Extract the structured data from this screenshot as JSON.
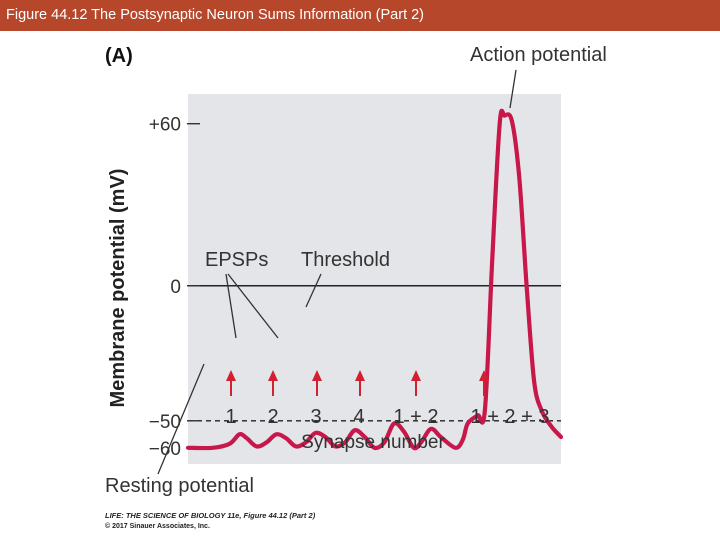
{
  "header": {
    "title": "Figure 44.12 The Postsynaptic Neuron Sums Information (Part 2)",
    "color": "#b7472a"
  },
  "chart_data": {
    "type": "line",
    "panel_label": "(A)",
    "ylabel": "Membrane potential (mV)",
    "xlabel": "Synapse number",
    "ylim": [
      -66,
      71
    ],
    "y_ticks": [
      {
        "value": 60,
        "label": "+60"
      },
      {
        "value": 0,
        "label": "0"
      },
      {
        "value": -50,
        "label": "−50"
      },
      {
        "value": -60,
        "label": "−60"
      }
    ],
    "threshold_mV": -50,
    "zero_line_mV": 0,
    "resting_mV": -60,
    "stimuli": [
      "1",
      "2",
      "3",
      "4",
      "1 + 2",
      "1 + 2 + 3"
    ],
    "series": [
      {
        "color": "#c8174a",
        "points": [
          [
            0.0,
            -60
          ],
          [
            0.1,
            -60
          ],
          [
            0.17,
            -58.5
          ],
          [
            0.21,
            -55
          ],
          [
            0.24,
            -56.5
          ],
          [
            0.28,
            -59.5
          ],
          [
            0.32,
            -58
          ],
          [
            0.36,
            -55
          ],
          [
            0.4,
            -56.5
          ],
          [
            0.44,
            -59.5
          ],
          [
            0.48,
            -58
          ],
          [
            0.52,
            -54.5
          ],
          [
            0.56,
            -56
          ],
          [
            0.6,
            -59.5
          ],
          [
            0.64,
            -58
          ],
          [
            0.68,
            -53.5
          ],
          [
            0.72,
            -56
          ],
          [
            0.76,
            -60
          ],
          [
            0.8,
            -58
          ],
          [
            0.84,
            -51
          ],
          [
            0.88,
            -54
          ],
          [
            0.92,
            -60
          ],
          [
            0.95,
            -58
          ],
          [
            0.99,
            -53
          ],
          [
            1.03,
            -56
          ],
          [
            1.09,
            -60
          ],
          [
            1.12,
            -57
          ],
          [
            1.14,
            -51
          ],
          [
            1.18,
            -48
          ],
          [
            1.21,
            -46
          ],
          [
            1.24,
            10
          ],
          [
            1.27,
            60
          ],
          [
            1.29,
            63
          ],
          [
            1.32,
            61
          ],
          [
            1.35,
            40
          ],
          [
            1.38,
            0
          ],
          [
            1.41,
            -35
          ],
          [
            1.44,
            -46
          ],
          [
            1.48,
            -52
          ],
          [
            1.52,
            -56
          ]
        ]
      }
    ],
    "annotations": {
      "action_potential": "Action potential",
      "epsps": "EPSPs",
      "threshold": "Threshold",
      "resting": "Resting potential"
    },
    "colors": {
      "trace": "#c8174a",
      "arrows": "#d32030",
      "plot_background": "#e4e5e9"
    }
  },
  "credit": {
    "line1": "LIFE: THE SCIENCE OF BIOLOGY 11e, Figure 44.12 (Part 2)",
    "line2": "© 2017 Sinauer Associates, Inc."
  }
}
